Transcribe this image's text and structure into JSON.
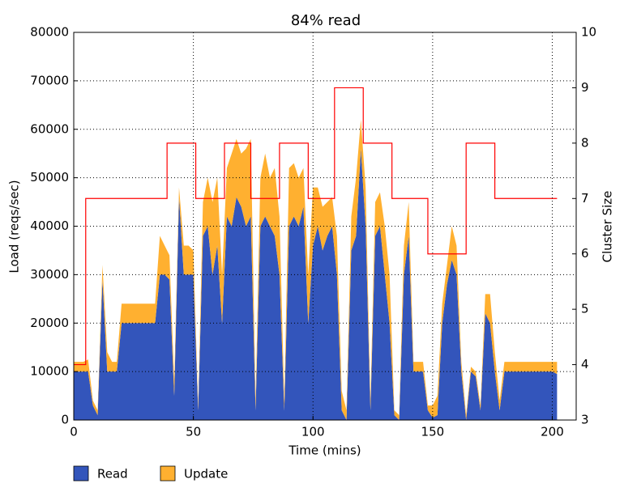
{
  "chart_data": {
    "type": "stacked_area",
    "title": "84% read",
    "x_label": "Time (mins)",
    "y_label": "Load (reqs/sec)",
    "y2_label": "Cluster Size",
    "x": [
      0,
      2,
      4,
      6,
      8,
      10,
      12,
      14,
      16,
      18,
      20,
      22,
      24,
      26,
      28,
      30,
      32,
      34,
      36,
      38,
      40,
      42,
      44,
      46,
      48,
      50,
      52,
      54,
      56,
      58,
      60,
      62,
      64,
      66,
      68,
      70,
      72,
      74,
      76,
      78,
      80,
      82,
      84,
      86,
      88,
      90,
      92,
      94,
      96,
      98,
      100,
      102,
      104,
      106,
      108,
      110,
      112,
      114,
      116,
      118,
      120,
      122,
      124,
      126,
      128,
      130,
      132,
      134,
      136,
      138,
      140,
      142,
      144,
      146,
      148,
      150,
      152,
      154,
      156,
      158,
      160,
      162,
      164,
      166,
      168,
      170,
      172,
      174,
      176,
      178,
      180,
      182,
      184,
      186,
      188,
      190,
      192,
      194,
      196,
      198,
      200,
      202
    ],
    "series": [
      {
        "name": "Read",
        "color": "#3355bb",
        "values": [
          10000,
          10000,
          10000,
          10000,
          3000,
          1000,
          29000,
          10000,
          10000,
          10000,
          20000,
          20000,
          20000,
          20000,
          20000,
          20000,
          20000,
          20000,
          30000,
          30000,
          29000,
          5000,
          46000,
          30000,
          30000,
          30000,
          2000,
          38000,
          40000,
          30000,
          36000,
          20000,
          42000,
          40000,
          46000,
          44000,
          40000,
          42000,
          2000,
          40000,
          42000,
          40000,
          38000,
          30000,
          2000,
          40000,
          42000,
          40000,
          44000,
          20000,
          36000,
          40000,
          35000,
          38000,
          40000,
          30000,
          2000,
          0,
          35000,
          38000,
          56000,
          40000,
          2000,
          38000,
          40000,
          30000,
          20000,
          1000,
          0,
          30000,
          38000,
          10000,
          10000,
          10000,
          2000,
          500,
          1000,
          20000,
          28000,
          33000,
          30000,
          10000,
          0,
          10000,
          9000,
          2000,
          22000,
          20000,
          10000,
          2000,
          10000,
          10000,
          10000,
          10000,
          10000,
          10000,
          10000,
          10000,
          10000,
          10000,
          10000,
          9500
        ]
      },
      {
        "name": "Update",
        "color": "#ffb030",
        "values": [
          2000,
          2000,
          2000,
          2500,
          1000,
          1000,
          3000,
          4000,
          2000,
          2000,
          4000,
          4000,
          4000,
          4000,
          4000,
          4000,
          4000,
          4000,
          8000,
          6000,
          5000,
          3000,
          2000,
          6000,
          6000,
          5000,
          1000,
          7000,
          10000,
          15000,
          14000,
          10000,
          10000,
          15000,
          12000,
          11000,
          16000,
          16000,
          2000,
          10000,
          13000,
          10000,
          14000,
          12000,
          2000,
          12000,
          11000,
          10000,
          8000,
          10000,
          12000,
          8000,
          9000,
          7000,
          6000,
          8000,
          4000,
          2000,
          7000,
          12000,
          6000,
          8000,
          2000,
          7000,
          7000,
          10000,
          10000,
          1000,
          1000,
          6000,
          7000,
          2000,
          2000,
          2000,
          1000,
          2500,
          4000,
          4000,
          4000,
          7000,
          6000,
          2000,
          1000,
          1000,
          1000,
          1000,
          4000,
          6000,
          4000,
          2000,
          2000,
          2000,
          2000,
          2000,
          2000,
          2000,
          2000,
          2000,
          2000,
          2000,
          2000,
          2500
        ]
      }
    ],
    "step_line": {
      "color": "#ff0000",
      "axis": "y2",
      "x": [
        0,
        5,
        39,
        51,
        63,
        74,
        86,
        98,
        109,
        121,
        133,
        148,
        164,
        176,
        202
      ],
      "values": [
        4,
        7,
        8,
        7,
        8,
        7,
        8,
        7,
        9,
        8,
        7,
        6,
        8,
        7,
        7
      ]
    },
    "xlim": [
      0,
      210
    ],
    "xticks": [
      0,
      50,
      100,
      150,
      200
    ],
    "ylim": [
      0,
      80000
    ],
    "yticks": [
      0,
      10000,
      20000,
      30000,
      40000,
      50000,
      60000,
      70000,
      80000
    ],
    "y2lim": [
      3,
      10
    ],
    "y2ticks": [
      3,
      4,
      5,
      6,
      7,
      8,
      9,
      10
    ],
    "grid": true,
    "legend": "below"
  }
}
